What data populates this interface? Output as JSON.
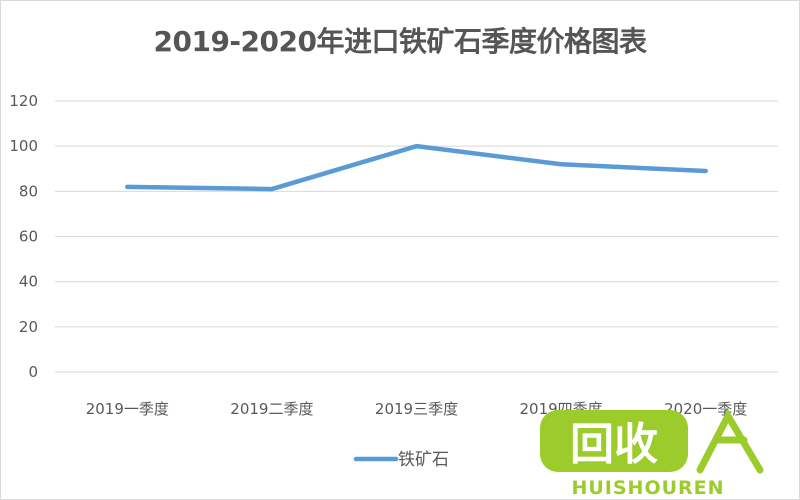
{
  "chart_data": {
    "type": "line",
    "title": "2019-2020年进口铁矿石季度价格图表",
    "categories": [
      "2019一季度",
      "2019二季度",
      "2019三季度",
      "2019四季度",
      "2020一季度"
    ],
    "series": [
      {
        "name": "铁矿石",
        "values": [
          82,
          81,
          100,
          92,
          89
        ],
        "color": "#5b9bd5"
      }
    ],
    "ylim": [
      0,
      120
    ],
    "yticks": [
      0,
      20,
      40,
      60,
      80,
      100,
      120
    ],
    "grid": true,
    "legend": "bottom"
  },
  "watermark": {
    "text": "回收",
    "subtext": "HUISHOUREN",
    "color": "#9ccc2c"
  }
}
